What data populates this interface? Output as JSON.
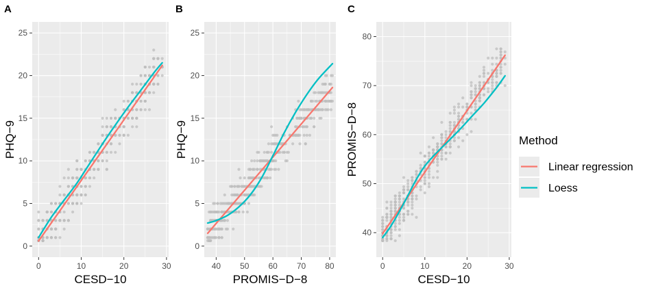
{
  "legend": {
    "title": "Method",
    "items": [
      {
        "label": "Linear regression",
        "color": "#F8766D"
      },
      {
        "label": "Loess",
        "color": "#00BFC4"
      }
    ]
  },
  "colors": {
    "panel_bg": "#EBEBEB",
    "grid": "#FFFFFF",
    "point": "#BDBDBD",
    "tick_text": "#4D4D4D"
  },
  "chart_data": [
    {
      "type": "scatter",
      "panel": "A",
      "xlabel": "CESD−10",
      "ylabel": "PHQ−9",
      "xlim": [
        -1.5,
        30.5
      ],
      "ylim": [
        -1.3,
        26.3
      ],
      "xticks": [
        0,
        10,
        20,
        30
      ],
      "yticks": [
        0,
        5,
        10,
        15,
        20,
        25
      ],
      "x_tick_labels": [
        "0",
        "10",
        "20",
        "30"
      ],
      "y_tick_labels": [
        "0",
        "5",
        "10",
        "15",
        "20",
        "25"
      ],
      "series": [
        {
          "name": "Linear regression",
          "color": "#F8766D",
          "x": [
            0,
            29
          ],
          "y": [
            0.6,
            21.2
          ]
        },
        {
          "name": "Loess",
          "color": "#00BFC4",
          "x": [
            0,
            3,
            6,
            9,
            12,
            15,
            18,
            21,
            24,
            27,
            29
          ],
          "y": [
            1.0,
            3.4,
            5.4,
            7.4,
            9.7,
            12.0,
            14.2,
            16.3,
            18.3,
            20.3,
            21.5
          ]
        }
      ]
    },
    {
      "type": "scatter",
      "panel": "B",
      "xlabel": "PROMIS−D−8",
      "ylabel": "PHQ−9",
      "xlim": [
        35.8,
        82.2
      ],
      "ylim": [
        -1.3,
        26.3
      ],
      "xticks": [
        40,
        50,
        60,
        70,
        80
      ],
      "yticks": [
        0,
        5,
        10,
        15,
        20,
        25
      ],
      "x_tick_labels": [
        "40",
        "50",
        "60",
        "70",
        "80"
      ],
      "y_tick_labels": [
        "0",
        "5",
        "10",
        "15",
        "20",
        "25"
      ],
      "series": [
        {
          "name": "Linear regression",
          "color": "#F8766D",
          "x": [
            37,
            81
          ],
          "y": [
            1.5,
            18.6
          ]
        },
        {
          "name": "Loess",
          "color": "#00BFC4",
          "x": [
            37,
            40,
            44,
            48,
            52,
            56,
            60,
            64,
            68,
            72,
            76,
            81
          ],
          "y": [
            2.7,
            3.0,
            3.6,
            4.6,
            6.0,
            8.0,
            10.6,
            13.3,
            15.7,
            17.8,
            19.6,
            21.4
          ]
        }
      ]
    },
    {
      "type": "scatter",
      "panel": "C",
      "xlabel": "CESD−10",
      "ylabel": "PROMIS−D−8",
      "xlim": [
        -1.5,
        30.5
      ],
      "ylim": [
        35.0,
        83.0
      ],
      "xticks": [
        0,
        10,
        20,
        30
      ],
      "yticks": [
        40,
        50,
        60,
        70,
        80
      ],
      "x_tick_labels": [
        "0",
        "10",
        "20",
        "30"
      ],
      "y_tick_labels": [
        "40",
        "50",
        "60",
        "70",
        "80"
      ],
      "series": [
        {
          "name": "Linear regression",
          "color": "#F8766D",
          "x": [
            0,
            29
          ],
          "y": [
            39.8,
            76.2
          ]
        },
        {
          "name": "Loess",
          "color": "#00BFC4",
          "x": [
            0,
            2,
            4,
            6,
            8,
            10,
            12,
            15,
            18,
            21,
            24,
            27,
            29
          ],
          "y": [
            39.0,
            41.4,
            44.4,
            47.6,
            50.9,
            53.6,
            55.6,
            58.2,
            60.8,
            63.6,
            66.4,
            69.6,
            72.0
          ]
        }
      ]
    }
  ]
}
